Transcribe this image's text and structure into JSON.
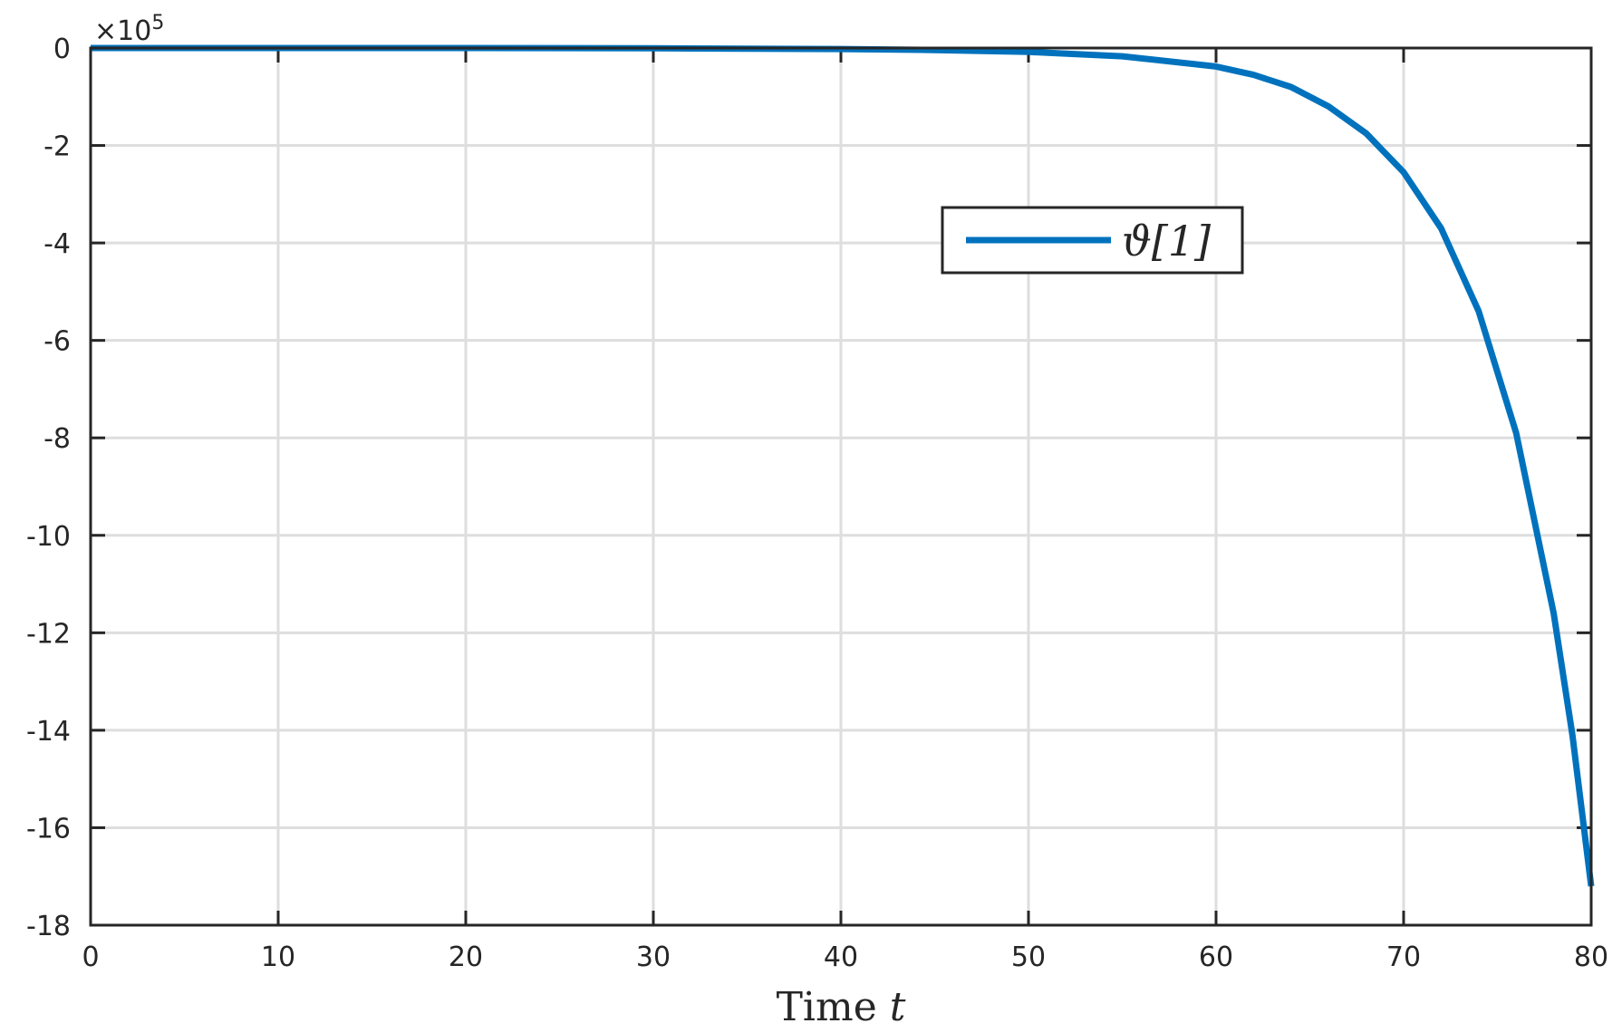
{
  "chart_data": {
    "type": "line",
    "xlabel": "Time",
    "xlabel_var": "t",
    "ylabel": "",
    "xlim": [
      0,
      80
    ],
    "ylim": [
      -18,
      0
    ],
    "xticks": [
      "0",
      "10",
      "20",
      "30",
      "40",
      "50",
      "60",
      "70",
      "80"
    ],
    "yticks": [
      "0",
      "-2",
      "-4",
      "-6",
      "-8",
      "-10",
      "-12",
      "-14",
      "-16",
      "-18"
    ],
    "y_multiplier": "×10",
    "y_multiplier_exp": "5",
    "grid": true,
    "legend": {
      "placement": "upper-right-inside",
      "entries": [
        "ϑ[1]"
      ]
    },
    "series": [
      {
        "name": "ϑ[1]",
        "color": "#0072bd",
        "x": [
          0,
          10,
          20,
          30,
          40,
          45,
          50,
          55,
          60,
          62,
          64,
          66,
          68,
          70,
          72,
          74,
          76,
          78,
          79,
          80
        ],
        "y": [
          0,
          0,
          0,
          -0.005,
          -0.02,
          -0.04,
          -0.08,
          -0.17,
          -0.38,
          -0.55,
          -0.8,
          -1.2,
          -1.75,
          -2.55,
          -3.7,
          -5.4,
          -7.9,
          -11.6,
          -14.1,
          -17.2
        ]
      }
    ]
  }
}
